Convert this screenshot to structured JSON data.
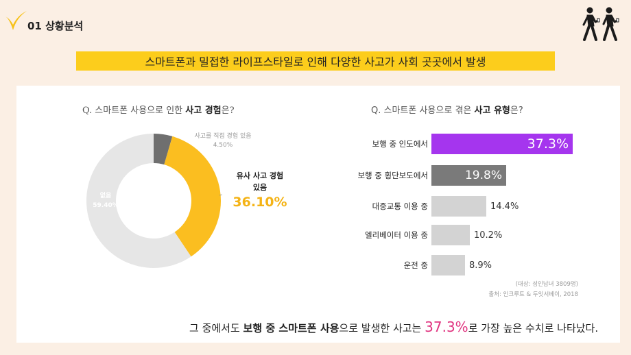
{
  "section": {
    "number_title": "01 상황분석"
  },
  "banner": {
    "text": "스마트폰과 밀접한 라이프스타일로 인해 다양한 사고가 사회 곳곳에서 발생"
  },
  "left_question": {
    "prefix": "Q. 스마트폰 사용으로 인한 ",
    "bold": "사고 경험",
    "suffix": "은?"
  },
  "right_question": {
    "prefix": "Q. 스마트폰 사용으로 겪은 ",
    "bold": "사고 유형",
    "suffix": "은?"
  },
  "donut_labels": {
    "direct_label": "사고를 직접 경험 있음",
    "direct_value": "4.50%",
    "similar_label_1": "유사 사고 경험",
    "similar_label_2": "있음",
    "similar_value": "36.10%",
    "none_label": "없음",
    "none_value": "59.40%"
  },
  "colors": {
    "direct": "#6f6f6f",
    "similar": "#fbbe20",
    "none": "#e6e6e6",
    "highlight_bar": "#a535ee",
    "second_bar": "#7a7a7a",
    "other_bar": "#d3d3d3",
    "accent_pink": "#e0337f",
    "banner": "#fccd1c"
  },
  "chart_data": [
    {
      "type": "pie",
      "title": "Q. 스마트폰 사용으로 인한 사고 경험은?",
      "categories": [
        "사고를 직접 경험 있음",
        "유사 사고 경험 있음",
        "없음"
      ],
      "values": [
        4.5,
        36.1,
        59.4
      ],
      "unit": "%"
    },
    {
      "type": "bar",
      "orientation": "horizontal",
      "title": "Q. 스마트폰 사용으로 겪은 사고 유형은?",
      "categories": [
        "보행 중 인도에서",
        "보행 중 횡단보도에서",
        "대중교통 이용 중",
        "엘리베이터 이용 중",
        "운전 중"
      ],
      "values": [
        37.3,
        19.8,
        14.4,
        10.2,
        8.9
      ],
      "value_labels": [
        "37.3%",
        "19.8%",
        "14.4%",
        "10.2%",
        "8.9%"
      ],
      "xlim": [
        0,
        40
      ]
    }
  ],
  "notes": {
    "line1": "(대상: 성인남녀 3809명)",
    "line2": "출처: 인크루트 & 두잇서베이, 2018"
  },
  "conclusion": {
    "part1": "그 중에서도 ",
    "bold": "보행 중 스마트폰 사용",
    "part2": "으로 발생한 사고는 ",
    "highlight": "37.3%",
    "part3": "로 가장 높은 수치로 나타났다."
  }
}
